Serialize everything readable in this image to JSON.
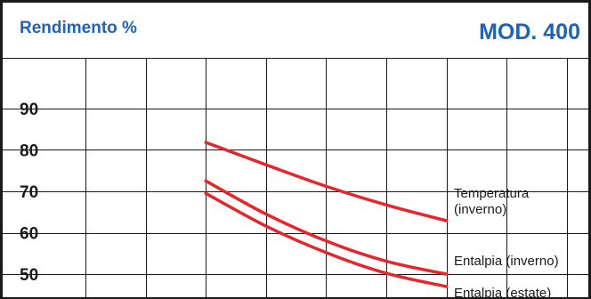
{
  "chart_data": {
    "type": "line",
    "title": "MOD. 400",
    "xlabel": "",
    "ylabel": "Rendimento %",
    "ylim": [
      44,
      102
    ],
    "xlim": [
      0,
      8.4
    ],
    "yticks": [
      90,
      80,
      70,
      60,
      50
    ],
    "grid": true,
    "series": [
      {
        "name": "Temperatura (inverno)",
        "label_lines": [
          "Temperatura",
          "(inverno)"
        ],
        "color": "#e5262a",
        "x": [
          2,
          3,
          4,
          5,
          6
        ],
        "y": [
          81.8,
          76.4,
          71.2,
          66.7,
          62.9
        ]
      },
      {
        "name": "Entalpia (inverno)",
        "label_lines": [
          "Entalpia (inverno)"
        ],
        "color": "#e5262a",
        "x": [
          2,
          3,
          4,
          5,
          6
        ],
        "y": [
          72.5,
          64.5,
          58.0,
          53.1,
          50.0
        ]
      },
      {
        "name": "Entalpia (estate)",
        "label_lines": [
          "Entalpia (estate)"
        ],
        "color": "#e5262a",
        "x": [
          2,
          3,
          4,
          5,
          6
        ],
        "y": [
          69.5,
          61.6,
          55.2,
          50.2,
          47.0
        ]
      }
    ]
  }
}
